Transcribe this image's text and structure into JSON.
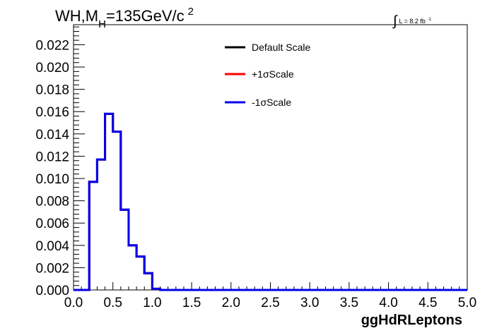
{
  "title": {
    "main": "WH,M",
    "sub": "H",
    "rest": "=135GeV/c",
    "sup": "2"
  },
  "lumi": {
    "integral": "∫",
    "text": "L = 8.2 fb",
    "sup": "-1"
  },
  "chart_data": {
    "type": "line",
    "xlabel": "ggHdRLeptons",
    "xlim": [
      0,
      5
    ],
    "ylim": [
      0,
      0.0238
    ],
    "x_ticks": [
      "0.0",
      "0.5",
      "1.0",
      "1.5",
      "2.0",
      "2.5",
      "3.0",
      "3.5",
      "4.0",
      "4.5",
      "5.0"
    ],
    "y_ticks": [
      "0.000",
      "0.002",
      "0.004",
      "0.006",
      "0.008",
      "0.010",
      "0.012",
      "0.014",
      "0.016",
      "0.018",
      "0.020",
      "0.022"
    ],
    "legend_position": "top-center",
    "bin_edges": [
      0,
      0.1,
      0.2,
      0.3,
      0.4,
      0.5,
      0.6,
      0.7,
      0.8,
      0.9,
      1.0,
      1.1,
      1.2,
      1.3,
      1.4,
      1.5,
      1.6,
      1.7,
      1.8,
      1.9,
      2.0,
      2.1,
      2.2,
      2.3,
      2.4,
      2.5,
      2.6,
      2.7,
      2.8,
      2.9,
      3.0,
      3.1,
      3.2,
      3.3,
      3.4,
      3.5,
      3.6,
      3.7,
      3.8,
      3.9,
      4.0,
      4.1,
      4.2,
      4.3,
      4.4,
      4.5,
      4.6,
      4.7,
      4.8,
      4.9,
      5.0
    ],
    "series": [
      {
        "name": "Default Scale",
        "color": "#000000",
        "values": [
          0,
          0,
          0.0097,
          0.0117,
          0.0158,
          0.0142,
          0.0072,
          0.004,
          0.003,
          0.0015,
          0.0001,
          0,
          0,
          0,
          0,
          0,
          0,
          0,
          0,
          0,
          0,
          0,
          0,
          0,
          0,
          0,
          0,
          0,
          0,
          0,
          0,
          0,
          0,
          0,
          0,
          0,
          0,
          0,
          0,
          0,
          0,
          0,
          0,
          0,
          0,
          0,
          0,
          0,
          0,
          0
        ]
      },
      {
        "name": "+1σScale",
        "color": "#ff0000",
        "values": [
          0,
          0,
          0.0097,
          0.0117,
          0.0158,
          0.0142,
          0.0072,
          0.004,
          0.003,
          0.0015,
          0.0001,
          0,
          0,
          0,
          0,
          0,
          0,
          0,
          0,
          0,
          0,
          0,
          0,
          0,
          0,
          0,
          0,
          0,
          0,
          0,
          0,
          0,
          0,
          0,
          0,
          0,
          0,
          0,
          0,
          0,
          0,
          0,
          0,
          0,
          0,
          0,
          0,
          0,
          0,
          0
        ]
      },
      {
        "name": "-1σScale",
        "color": "#0000ee",
        "values": [
          0,
          0,
          0.0097,
          0.0117,
          0.0158,
          0.0142,
          0.0072,
          0.004,
          0.003,
          0.0015,
          0.0001,
          0,
          0,
          0,
          0,
          0,
          0,
          0,
          0,
          0,
          0,
          0,
          0,
          0,
          0,
          0,
          0,
          0,
          0,
          0,
          0,
          0,
          0,
          0,
          0,
          0,
          0,
          0,
          0,
          0,
          0,
          0,
          0,
          0,
          0,
          0,
          0,
          0,
          0,
          0
        ]
      }
    ]
  }
}
